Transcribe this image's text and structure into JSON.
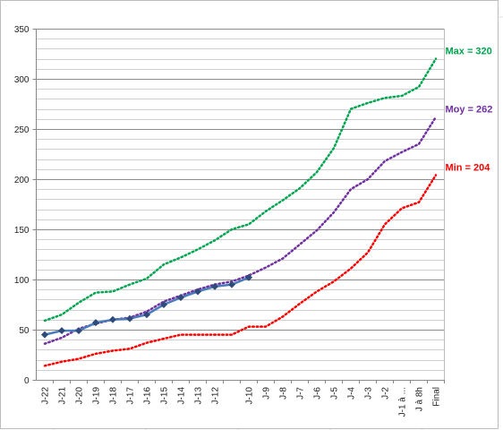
{
  "chart_data": {
    "type": "line",
    "categories": [
      "J-22",
      "J-21",
      "J-20",
      "J-19",
      "J-18",
      "J-17",
      "J-16",
      "J-15",
      "J-14",
      "J-13",
      "J-12",
      null,
      "J-10",
      "J-9",
      "J-8",
      "J-7",
      "J-6",
      "J-5",
      "J-4",
      "J-3",
      "J-2",
      "J-1 à ...",
      "J à 8h",
      "Final"
    ],
    "series": [
      {
        "color": "#00a550",
        "style": "dotted",
        "values": [
          59,
          65,
          77,
          87,
          88,
          95,
          101,
          115,
          122,
          130,
          139,
          150,
          155,
          168,
          179,
          191,
          207,
          231,
          270,
          276,
          281,
          283,
          292,
          320
        ]
      },
      {
        "color": "#7030a0",
        "style": "dotted",
        "values": [
          36,
          42,
          51,
          56,
          60,
          62,
          68,
          78,
          84,
          90,
          95,
          98,
          104,
          112,
          121,
          135,
          149,
          167,
          190,
          200,
          218,
          227,
          235,
          262
        ]
      },
      {
        "color": "#ff0000",
        "style": "dotted",
        "values": [
          14,
          18,
          21,
          26,
          29,
          31,
          37,
          41,
          45,
          45,
          45,
          45,
          53,
          53,
          63,
          76,
          88,
          98,
          111,
          127,
          155,
          171,
          177,
          204
        ]
      },
      {
        "color": "#4a7ebb",
        "style": "solid",
        "marker": "diamond",
        "values": [
          45,
          49,
          49,
          57,
          60,
          61,
          65,
          75,
          82,
          88,
          93,
          95,
          102,
          null,
          null,
          null,
          null,
          null,
          null,
          null,
          null,
          null,
          null,
          null
        ]
      }
    ],
    "annotations": [
      {
        "text": "Max = 320",
        "color": "#00a550"
      },
      {
        "text": "Moy = 262",
        "color": "#7030a0"
      },
      {
        "text": "Min = 204",
        "color": "#ff0000"
      }
    ],
    "ylim": [
      0,
      350
    ],
    "yticks": [
      0,
      50,
      100,
      150,
      200,
      250,
      300,
      350
    ],
    "yminorticks": [
      10,
      20,
      30,
      40,
      60,
      70,
      80,
      90,
      110,
      120,
      130,
      140,
      160,
      170,
      180,
      190,
      210,
      220,
      230,
      240,
      260,
      270,
      280,
      290,
      310,
      320,
      330,
      340
    ],
    "grid": true
  }
}
